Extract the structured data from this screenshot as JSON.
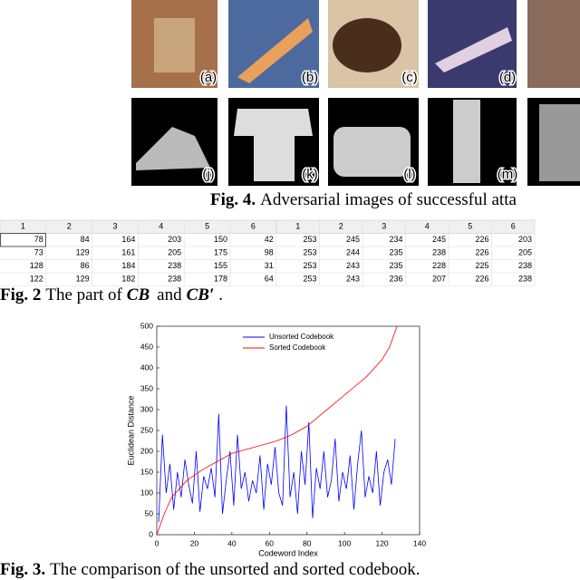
{
  "figure4": {
    "row1_labels": [
      "(a)",
      "(b)",
      "(c)",
      "(d)"
    ],
    "row2_labels": [
      "(j)",
      "(k)",
      "(l)",
      "(m)"
    ],
    "caption_label": "Fig. 4.",
    "caption": "Adversarial images of successful atta"
  },
  "table": {
    "header_left": [
      "1",
      "2",
      "3",
      "4",
      "5",
      "6"
    ],
    "header_right": [
      "1",
      "2",
      "3",
      "4",
      "5",
      "6"
    ],
    "rows": [
      [
        78,
        84,
        164,
        203,
        150,
        42,
        253,
        245,
        234,
        245,
        226,
        203
      ],
      [
        73,
        129,
        161,
        205,
        175,
        98,
        253,
        244,
        235,
        238,
        226,
        205
      ],
      [
        128,
        86,
        184,
        238,
        155,
        31,
        253,
        243,
        235,
        228,
        225,
        238
      ],
      [
        122,
        129,
        182,
        238,
        178,
        64,
        253,
        243,
        236,
        207,
        226,
        238
      ]
    ]
  },
  "figure2_caption": {
    "label": "Fig. 2",
    "text": "The part of",
    "cb": "CB",
    "and": "and",
    "cb_prime": "CB′",
    "end": "."
  },
  "chart_data": {
    "type": "line",
    "x_label": "Codeword Index",
    "y_label": "Euclidean Distance",
    "xlim": [
      0,
      140
    ],
    "xticks": [
      0,
      20,
      40,
      60,
      80,
      100,
      120,
      140
    ],
    "ylim": [
      0,
      500
    ],
    "yticks": [
      0,
      50,
      100,
      150,
      200,
      250,
      300,
      350,
      400,
      450,
      500
    ],
    "series": [
      {
        "name": "Unsorted Codebook",
        "color": "#0000ff",
        "x": [
          1,
          3,
          5,
          7,
          9,
          11,
          13,
          15,
          17,
          19,
          21,
          23,
          25,
          27,
          29,
          31,
          33,
          35,
          37,
          39,
          41,
          43,
          45,
          47,
          49,
          51,
          53,
          55,
          57,
          59,
          61,
          63,
          65,
          67,
          69,
          71,
          73,
          75,
          77,
          79,
          81,
          83,
          85,
          87,
          89,
          91,
          93,
          95,
          97,
          99,
          101,
          103,
          105,
          107,
          109,
          111,
          113,
          115,
          117,
          119,
          121,
          123,
          125,
          127
        ],
        "values": [
          30,
          240,
          100,
          170,
          60,
          150,
          90,
          180,
          120,
          75,
          200,
          55,
          140,
          110,
          160,
          90,
          290,
          50,
          130,
          200,
          70,
          240,
          110,
          150,
          80,
          130,
          100,
          190,
          60,
          170,
          120,
          210,
          100,
          70,
          310,
          90,
          150,
          50,
          200,
          120,
          270,
          40,
          160,
          110,
          200,
          90,
          130,
          230,
          80,
          150,
          110,
          190,
          60,
          170,
          250,
          90,
          140,
          100,
          200,
          70,
          150,
          180,
          120,
          230
        ]
      },
      {
        "name": "Sorted Codebook",
        "color": "#ff0000",
        "x": [
          0,
          4,
          8,
          16,
          24,
          32,
          40,
          48,
          56,
          64,
          72,
          80,
          88,
          96,
          104,
          112,
          120,
          124,
          128
        ],
        "values": [
          0,
          50,
          90,
          130,
          155,
          175,
          195,
          205,
          215,
          225,
          240,
          260,
          290,
          320,
          350,
          380,
          420,
          450,
          500
        ]
      }
    ]
  },
  "figure3_caption": {
    "label": "Fig. 3.",
    "text": "The comparison of the unsorted and sorted codebook."
  }
}
